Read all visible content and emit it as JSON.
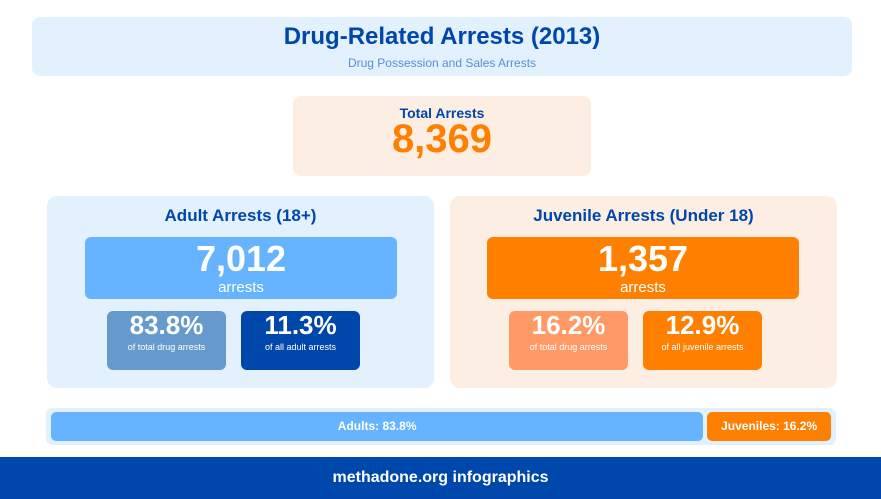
{
  "header": {
    "title": "Drug-Related Arrests (2013)",
    "subtitle": "Drug Possession and Sales Arrests"
  },
  "total": {
    "label": "Total Arrests",
    "value": "8,369"
  },
  "adult": {
    "title": "Adult Arrests (18+)",
    "count": "7,012",
    "count_label": "arrests",
    "stats": [
      {
        "value": "83.8%",
        "label": "of total drug arrests"
      },
      {
        "value": "11.3%",
        "label": "of all adult arrests"
      }
    ]
  },
  "juvenile": {
    "title": "Juvenile Arrests (Under 18)",
    "count": "1,357",
    "count_label": "arrests",
    "stats": [
      {
        "value": "16.2%",
        "label": "of total drug arrests"
      },
      {
        "value": "12.9%",
        "label": "of all juvenile arrests"
      }
    ]
  },
  "bar": {
    "adult_label": "Adults: 83.8%",
    "adult_percent": 83.8,
    "juvenile_label": "Juveniles: 16.2%",
    "juvenile_percent": 16.2
  },
  "footer": {
    "text": "methadone.org infographics"
  },
  "colors": {
    "blue": "#0047ab",
    "light_blue": "#66b3ff",
    "orange": "#ff7f00",
    "light_orange": "#ff9966",
    "steel_blue": "#6699cc"
  }
}
